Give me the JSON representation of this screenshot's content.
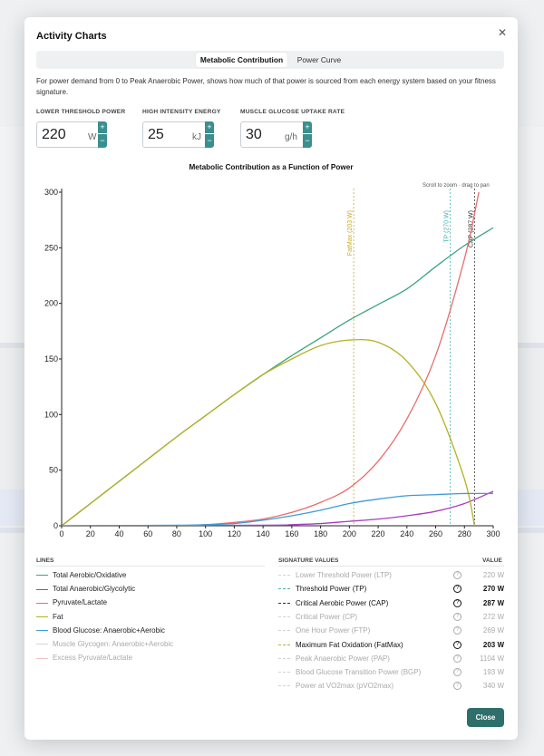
{
  "dialog": {
    "title": "Activity Charts",
    "close_icon": "close-icon",
    "tabs": [
      {
        "label": "Metabolic Contribution",
        "active": true
      },
      {
        "label": "Power Curve",
        "active": false
      }
    ],
    "description": "For power demand from 0 to Peak Anaerobic Power, shows how much of that power is sourced from each energy system based on your fitness signature.",
    "close_button": "Close"
  },
  "inputs": [
    {
      "label": "LOWER THRESHOLD POWER",
      "value": "220",
      "unit": "W"
    },
    {
      "label": "HIGH INTENSITY ENERGY",
      "value": "25",
      "unit": "kJ"
    },
    {
      "label": "MUSCLE GLUCOSE UPTAKE RATE",
      "value": "30",
      "unit": "g/h"
    }
  ],
  "zoom_hint": "Scroll to zoom · drag to pan",
  "chart_data": {
    "type": "line",
    "title": "Metabolic Contribution as a Function of Power",
    "xlim": [
      0,
      300
    ],
    "ylim": [
      0,
      300
    ],
    "xticks": [
      0,
      20,
      40,
      60,
      80,
      100,
      120,
      140,
      160,
      180,
      200,
      220,
      240,
      260,
      280,
      300
    ],
    "yticks": [
      0,
      50,
      100,
      150,
      200,
      250,
      300
    ],
    "grid": false,
    "series": [
      {
        "name": "Total Aerobic/Oxidative",
        "color": "#3aa57a",
        "x": [
          0,
          20,
          40,
          60,
          80,
          100,
          120,
          140,
          160,
          180,
          200,
          220,
          240,
          260,
          280,
          300
        ],
        "y": [
          0,
          20,
          40,
          60,
          80,
          99,
          118,
          136,
          153,
          169,
          185,
          199,
          213,
          233,
          252,
          268
        ]
      },
      {
        "name": "Total Anaerobic/Glycolytic",
        "color": "#a43fbf",
        "x": [
          0,
          140,
          160,
          180,
          200,
          220,
          240,
          260,
          280,
          300
        ],
        "y": [
          0,
          0.5,
          1,
          2,
          4,
          6,
          9,
          13,
          20,
          31
        ]
      },
      {
        "name": "Pyruvate/Lactate",
        "color": "#e86d6d",
        "x": [
          0,
          80,
          100,
          120,
          140,
          160,
          180,
          200,
          220,
          240,
          260,
          280,
          290
        ],
        "y": [
          0,
          0.2,
          1,
          3,
          6,
          12,
          21,
          34,
          58,
          96,
          153,
          240,
          300
        ]
      },
      {
        "name": "Fat",
        "color": "#b5b025",
        "x": [
          0,
          20,
          40,
          60,
          80,
          100,
          120,
          140,
          160,
          180,
          200,
          220,
          240,
          260,
          280,
          287
        ],
        "y": [
          0,
          20,
          40,
          60,
          80,
          99,
          118,
          136,
          150,
          162,
          167,
          165,
          148,
          110,
          42,
          0
        ]
      },
      {
        "name": "Blood Glucose: Anaerobic+Aerobic",
        "color": "#3d9bd6",
        "x": [
          0,
          80,
          100,
          120,
          140,
          160,
          180,
          200,
          220,
          240,
          260,
          280,
          300
        ],
        "y": [
          0,
          0.5,
          1,
          2,
          5,
          9,
          14,
          20,
          24,
          27,
          28,
          29,
          29
        ]
      }
    ],
    "markers": [
      {
        "label": "FatMax (203 W)",
        "x": 203,
        "color": "#c4ad2a"
      },
      {
        "label": "TP (270 W)",
        "x": 270,
        "color": "#45b5b0"
      },
      {
        "label": "CAP (287 W)",
        "x": 287,
        "color": "#333333"
      }
    ]
  },
  "legend": {
    "heading": "LINES",
    "items": [
      {
        "label": "Total Aerobic/Oxidative",
        "color": "#3aa57a",
        "enabled": true
      },
      {
        "label": "Total Anaerobic/Glycolytic",
        "color": "#a43fbf",
        "enabled": true
      },
      {
        "label": "Pyruvate/Lactate",
        "color": "#e86d6d",
        "enabled": true
      },
      {
        "label": "Fat",
        "color": "#b5b025",
        "enabled": true
      },
      {
        "label": "Blood Glucose: Anaerobic+Aerobic",
        "color": "#3d9bd6",
        "enabled": true
      },
      {
        "label": "Muscle Glycogen: Anaerobic+Aerobic",
        "color": "#cfd3d6",
        "enabled": false
      },
      {
        "label": "Excess Pyruvate/Lactate",
        "color": "#f1c2c2",
        "enabled": false
      }
    ]
  },
  "signature": {
    "heading": "SIGNATURE VALUES",
    "value_heading": "VALUE",
    "items": [
      {
        "label": "Lower Threshold Power (LTP)",
        "value": "220 W",
        "color": "#cfd3d6",
        "enabled": false
      },
      {
        "label": "Threshold Power (TP)",
        "value": "270 W",
        "color": "#45b5b0",
        "enabled": true
      },
      {
        "label": "Critical Aerobic Power (CAP)",
        "value": "287 W",
        "color": "#333333",
        "enabled": true
      },
      {
        "label": "Critical Power (CP)",
        "value": "272 W",
        "color": "#cfd3d6",
        "enabled": false
      },
      {
        "label": "One Hour Power (FTP)",
        "value": "269 W",
        "color": "#cfd3d6",
        "enabled": false
      },
      {
        "label": "Maximum Fat Oxidation (FatMax)",
        "value": "203 W",
        "color": "#c4ad2a",
        "enabled": true
      },
      {
        "label": "Peak Anaerobic Power (PAP)",
        "value": "1104 W",
        "color": "#cfd3d6",
        "enabled": false
      },
      {
        "label": "Blood Glucose Transition Power (BGP)",
        "value": "193 W",
        "color": "#cfd3d6",
        "enabled": false
      },
      {
        "label": "Power at VO2max (pVO2max)",
        "value": "340 W",
        "color": "#cfd3d6",
        "enabled": false
      }
    ]
  }
}
